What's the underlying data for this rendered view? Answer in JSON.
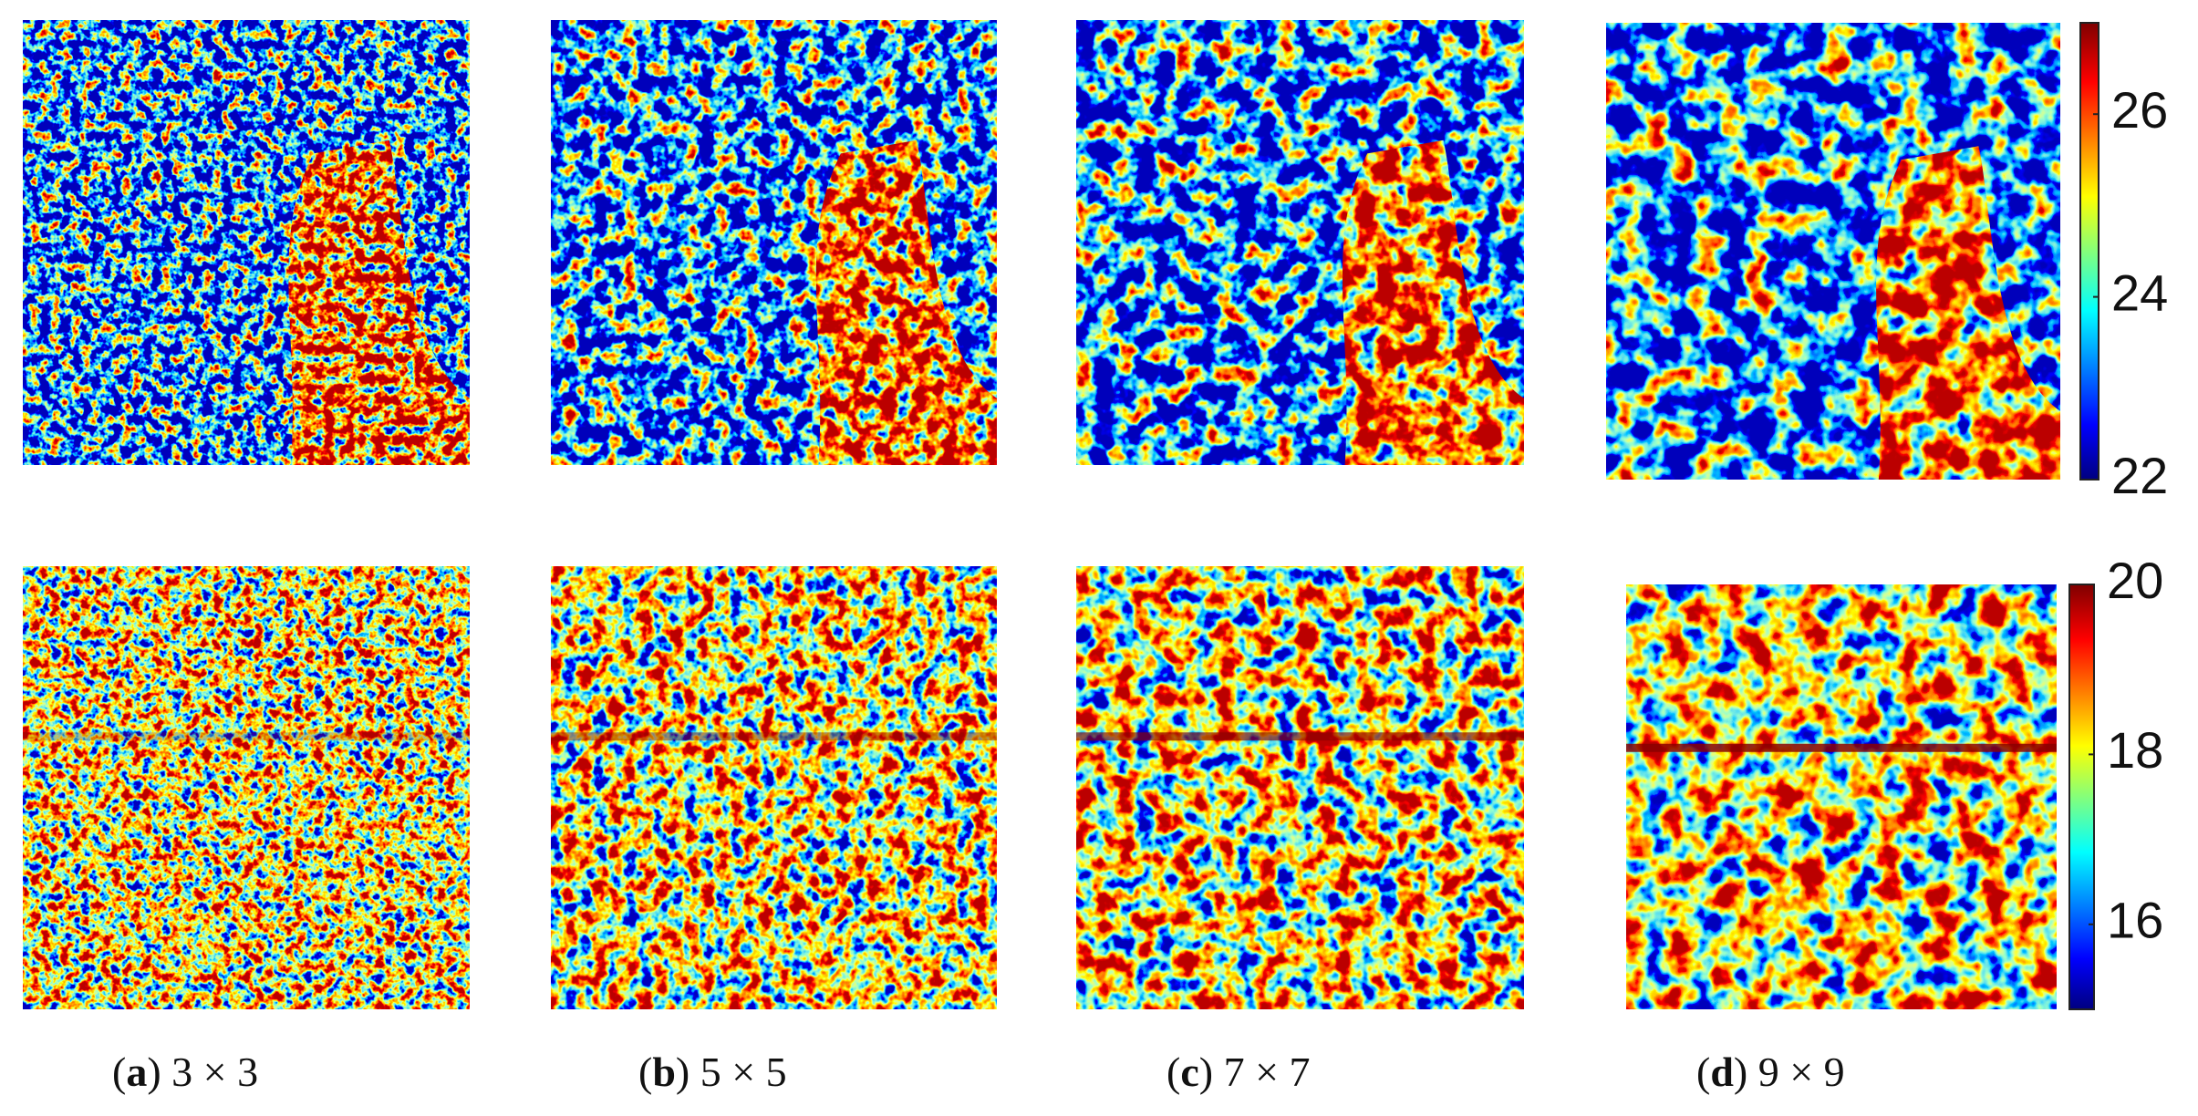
{
  "panels": [
    {
      "caption": [
        "(",
        "a",
        ") 3 × 3"
      ]
    },
    {
      "caption": [
        "(",
        "b",
        ") 5 × 5"
      ]
    },
    {
      "caption": [
        "(",
        "c",
        ") 7 × 7"
      ]
    },
    {
      "caption": [
        "(",
        "d",
        ") 9 × 9"
      ]
    }
  ],
  "colorbars": [
    {
      "lim": [
        22,
        27
      ],
      "ticks": [
        22,
        24,
        26
      ]
    },
    {
      "lim": [
        15,
        20
      ],
      "ticks": [
        16,
        18,
        20
      ]
    }
  ]
}
